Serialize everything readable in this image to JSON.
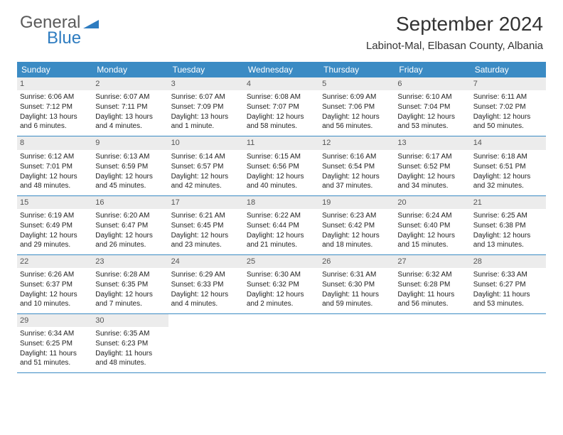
{
  "logo": {
    "line1": "General",
    "line2": "Blue"
  },
  "title": "September 2024",
  "location": "Labinot-Mal, Elbasan County, Albania",
  "colors": {
    "header_bg": "#3b8bc4",
    "header_text": "#ffffff",
    "daynum_bg": "#ececec",
    "daynum_text": "#555555",
    "body_text": "#222222",
    "logo_gray": "#5a5a5a",
    "logo_blue": "#2e7cc0",
    "border": "#3b8bc4"
  },
  "weekdays": [
    "Sunday",
    "Monday",
    "Tuesday",
    "Wednesday",
    "Thursday",
    "Friday",
    "Saturday"
  ],
  "days": [
    {
      "n": 1,
      "sr": "6:06 AM",
      "ss": "7:12 PM",
      "dl": "13 hours and 6 minutes."
    },
    {
      "n": 2,
      "sr": "6:07 AM",
      "ss": "7:11 PM",
      "dl": "13 hours and 4 minutes."
    },
    {
      "n": 3,
      "sr": "6:07 AM",
      "ss": "7:09 PM",
      "dl": "13 hours and 1 minute."
    },
    {
      "n": 4,
      "sr": "6:08 AM",
      "ss": "7:07 PM",
      "dl": "12 hours and 58 minutes."
    },
    {
      "n": 5,
      "sr": "6:09 AM",
      "ss": "7:06 PM",
      "dl": "12 hours and 56 minutes."
    },
    {
      "n": 6,
      "sr": "6:10 AM",
      "ss": "7:04 PM",
      "dl": "12 hours and 53 minutes."
    },
    {
      "n": 7,
      "sr": "6:11 AM",
      "ss": "7:02 PM",
      "dl": "12 hours and 50 minutes."
    },
    {
      "n": 8,
      "sr": "6:12 AM",
      "ss": "7:01 PM",
      "dl": "12 hours and 48 minutes."
    },
    {
      "n": 9,
      "sr": "6:13 AM",
      "ss": "6:59 PM",
      "dl": "12 hours and 45 minutes."
    },
    {
      "n": 10,
      "sr": "6:14 AM",
      "ss": "6:57 PM",
      "dl": "12 hours and 42 minutes."
    },
    {
      "n": 11,
      "sr": "6:15 AM",
      "ss": "6:56 PM",
      "dl": "12 hours and 40 minutes."
    },
    {
      "n": 12,
      "sr": "6:16 AM",
      "ss": "6:54 PM",
      "dl": "12 hours and 37 minutes."
    },
    {
      "n": 13,
      "sr": "6:17 AM",
      "ss": "6:52 PM",
      "dl": "12 hours and 34 minutes."
    },
    {
      "n": 14,
      "sr": "6:18 AM",
      "ss": "6:51 PM",
      "dl": "12 hours and 32 minutes."
    },
    {
      "n": 15,
      "sr": "6:19 AM",
      "ss": "6:49 PM",
      "dl": "12 hours and 29 minutes."
    },
    {
      "n": 16,
      "sr": "6:20 AM",
      "ss": "6:47 PM",
      "dl": "12 hours and 26 minutes."
    },
    {
      "n": 17,
      "sr": "6:21 AM",
      "ss": "6:45 PM",
      "dl": "12 hours and 23 minutes."
    },
    {
      "n": 18,
      "sr": "6:22 AM",
      "ss": "6:44 PM",
      "dl": "12 hours and 21 minutes."
    },
    {
      "n": 19,
      "sr": "6:23 AM",
      "ss": "6:42 PM",
      "dl": "12 hours and 18 minutes."
    },
    {
      "n": 20,
      "sr": "6:24 AM",
      "ss": "6:40 PM",
      "dl": "12 hours and 15 minutes."
    },
    {
      "n": 21,
      "sr": "6:25 AM",
      "ss": "6:38 PM",
      "dl": "12 hours and 13 minutes."
    },
    {
      "n": 22,
      "sr": "6:26 AM",
      "ss": "6:37 PM",
      "dl": "12 hours and 10 minutes."
    },
    {
      "n": 23,
      "sr": "6:28 AM",
      "ss": "6:35 PM",
      "dl": "12 hours and 7 minutes."
    },
    {
      "n": 24,
      "sr": "6:29 AM",
      "ss": "6:33 PM",
      "dl": "12 hours and 4 minutes."
    },
    {
      "n": 25,
      "sr": "6:30 AM",
      "ss": "6:32 PM",
      "dl": "12 hours and 2 minutes."
    },
    {
      "n": 26,
      "sr": "6:31 AM",
      "ss": "6:30 PM",
      "dl": "11 hours and 59 minutes."
    },
    {
      "n": 27,
      "sr": "6:32 AM",
      "ss": "6:28 PM",
      "dl": "11 hours and 56 minutes."
    },
    {
      "n": 28,
      "sr": "6:33 AM",
      "ss": "6:27 PM",
      "dl": "11 hours and 53 minutes."
    },
    {
      "n": 29,
      "sr": "6:34 AM",
      "ss": "6:25 PM",
      "dl": "11 hours and 51 minutes."
    },
    {
      "n": 30,
      "sr": "6:35 AM",
      "ss": "6:23 PM",
      "dl": "11 hours and 48 minutes."
    }
  ],
  "labels": {
    "sunrise": "Sunrise:",
    "sunset": "Sunset:",
    "daylight": "Daylight:"
  }
}
